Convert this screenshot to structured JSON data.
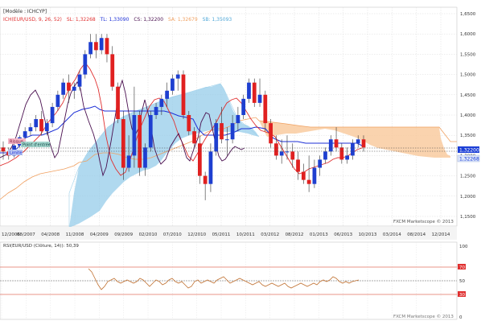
{
  "header": {
    "model_label": "[Modèle : ICHCYP]",
    "indicator_name": "ICH(EUR/USD, 9, 26, 52)",
    "sl_text": "SL: 1,32268",
    "tl_text": "TL: 1,33090",
    "cs_text": "CS: 1,32200",
    "sa_text": "SA: 1,32679",
    "sb_text": "SB: 1,35093"
  },
  "price_axis": {
    "ticks": [
      "1,6500",
      "1,6000",
      "1,5500",
      "1,5000",
      "1,4500",
      "1,4000",
      "1,3500",
      "1,3000",
      "1,2500",
      "1,2000",
      "1,1500"
    ],
    "current_price": "1,32200",
    "second_price": "1,32268"
  },
  "time_axis": {
    "ticks": [
      "12/2006",
      "08/2007",
      "04/2008",
      "11/2008",
      "04/2009",
      "09/2009",
      "02/2010",
      "07/2010",
      "12/2010",
      "05/2011",
      "10/2011",
      "03/2012",
      "08/2012",
      "01/2013",
      "06/2013",
      "10/2013",
      "03/2014",
      "08/2014",
      "12/2014"
    ]
  },
  "labels": {
    "pink_tag": "Risque",
    "teal_tag": "Point d'entrée",
    "blue_tag": "Limite"
  },
  "watermark_main": "FXCM Marketscope © 2013",
  "rsi": {
    "title": "RSI(EUR/USD (Clôture, 14)): 50,39",
    "axis_ticks": [
      "100",
      "70",
      "50",
      "30",
      "0"
    ]
  },
  "watermark_rsi": "FXCM Marketscope © 2013",
  "colors": {
    "up_candle": "#1e3fd0",
    "down_candle": "#e02020",
    "tenkan": "#e03030",
    "kijun": "#1c2fd6",
    "chikou": "#4a1050",
    "cloud_bull": "#8ec9e8",
    "cloud_bear": "#f9c89a",
    "rsi_line": "#c07030",
    "rsi_band": "#e07060"
  },
  "chart_data": {
    "type": "candlestick",
    "symbol": "EUR/USD",
    "y_range": [
      1.15,
      1.65
    ],
    "x_range": [
      "12/2006",
      "12/2014"
    ],
    "candles": [
      [
        1.32,
        1.335,
        1.29,
        1.31
      ],
      [
        1.31,
        1.32,
        1.29,
        1.3
      ],
      [
        1.3,
        1.33,
        1.295,
        1.325
      ],
      [
        1.325,
        1.35,
        1.32,
        1.345
      ],
      [
        1.345,
        1.37,
        1.34,
        1.36
      ],
      [
        1.36,
        1.38,
        1.35,
        1.37
      ],
      [
        1.37,
        1.4,
        1.36,
        1.39
      ],
      [
        1.39,
        1.41,
        1.35,
        1.36
      ],
      [
        1.36,
        1.39,
        1.35,
        1.38
      ],
      [
        1.38,
        1.43,
        1.37,
        1.42
      ],
      [
        1.42,
        1.46,
        1.41,
        1.45
      ],
      [
        1.45,
        1.49,
        1.44,
        1.48
      ],
      [
        1.48,
        1.5,
        1.43,
        1.46
      ],
      [
        1.46,
        1.48,
        1.44,
        1.47
      ],
      [
        1.47,
        1.51,
        1.46,
        1.5
      ],
      [
        1.5,
        1.56,
        1.49,
        1.55
      ],
      [
        1.55,
        1.6,
        1.54,
        1.58
      ],
      [
        1.58,
        1.6,
        1.54,
        1.56
      ],
      [
        1.56,
        1.6,
        1.55,
        1.59
      ],
      [
        1.59,
        1.6,
        1.53,
        1.55
      ],
      [
        1.55,
        1.57,
        1.46,
        1.47
      ],
      [
        1.47,
        1.48,
        1.38,
        1.39
      ],
      [
        1.39,
        1.41,
        1.24,
        1.27
      ],
      [
        1.27,
        1.35,
        1.26,
        1.3
      ],
      [
        1.3,
        1.47,
        1.27,
        1.4
      ],
      [
        1.4,
        1.41,
        1.25,
        1.27
      ],
      [
        1.27,
        1.33,
        1.25,
        1.32
      ],
      [
        1.32,
        1.41,
        1.31,
        1.4
      ],
      [
        1.4,
        1.43,
        1.39,
        1.42
      ],
      [
        1.42,
        1.45,
        1.4,
        1.44
      ],
      [
        1.44,
        1.48,
        1.42,
        1.46
      ],
      [
        1.46,
        1.5,
        1.45,
        1.49
      ],
      [
        1.49,
        1.51,
        1.46,
        1.5
      ],
      [
        1.5,
        1.51,
        1.39,
        1.4
      ],
      [
        1.4,
        1.41,
        1.35,
        1.36
      ],
      [
        1.36,
        1.37,
        1.32,
        1.33
      ],
      [
        1.33,
        1.35,
        1.23,
        1.25
      ],
      [
        1.25,
        1.26,
        1.19,
        1.23
      ],
      [
        1.23,
        1.33,
        1.21,
        1.31
      ],
      [
        1.31,
        1.39,
        1.3,
        1.38
      ],
      [
        1.38,
        1.42,
        1.33,
        1.34
      ],
      [
        1.34,
        1.37,
        1.3,
        1.34
      ],
      [
        1.34,
        1.4,
        1.33,
        1.38
      ],
      [
        1.38,
        1.42,
        1.36,
        1.4
      ],
      [
        1.4,
        1.45,
        1.39,
        1.44
      ],
      [
        1.44,
        1.49,
        1.43,
        1.48
      ],
      [
        1.48,
        1.49,
        1.42,
        1.43
      ],
      [
        1.43,
        1.49,
        1.42,
        1.45
      ],
      [
        1.45,
        1.46,
        1.36,
        1.38
      ],
      [
        1.38,
        1.39,
        1.32,
        1.33
      ],
      [
        1.33,
        1.35,
        1.29,
        1.3
      ],
      [
        1.3,
        1.34,
        1.28,
        1.31
      ],
      [
        1.31,
        1.35,
        1.29,
        1.31
      ],
      [
        1.31,
        1.33,
        1.27,
        1.29
      ],
      [
        1.29,
        1.31,
        1.24,
        1.26
      ],
      [
        1.26,
        1.28,
        1.23,
        1.24
      ],
      [
        1.24,
        1.3,
        1.21,
        1.23
      ],
      [
        1.23,
        1.29,
        1.22,
        1.27
      ],
      [
        1.27,
        1.3,
        1.25,
        1.29
      ],
      [
        1.29,
        1.32,
        1.28,
        1.31
      ],
      [
        1.31,
        1.35,
        1.3,
        1.34
      ],
      [
        1.34,
        1.37,
        1.31,
        1.32
      ],
      [
        1.32,
        1.33,
        1.28,
        1.29
      ],
      [
        1.29,
        1.32,
        1.28,
        1.3
      ],
      [
        1.3,
        1.34,
        1.29,
        1.33
      ],
      [
        1.33,
        1.35,
        1.32,
        1.34
      ],
      [
        1.34,
        1.35,
        1.31,
        1.32
      ]
    ]
  }
}
